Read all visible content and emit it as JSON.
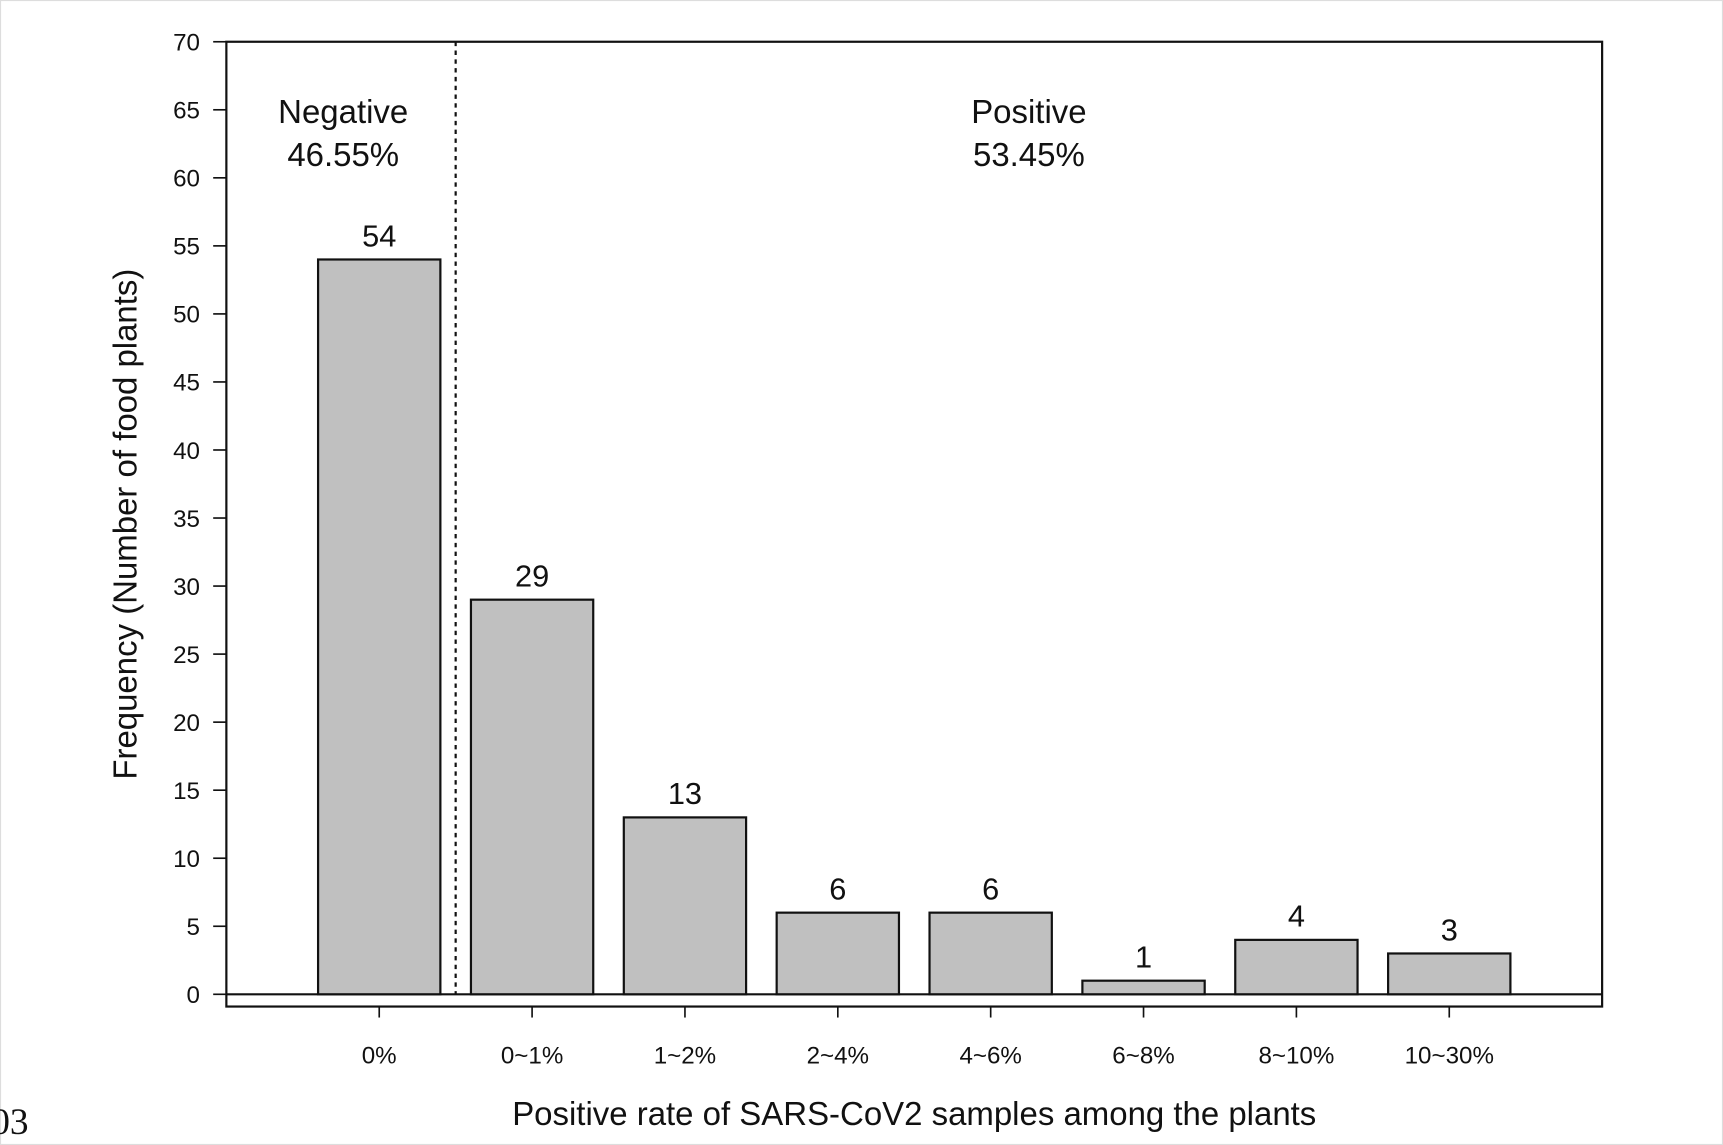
{
  "chart_data": {
    "type": "bar",
    "x_label": "Positive rate of SARS-CoV2 samples among the plants",
    "y_label": "Frequency (Number of food plants)",
    "categories": [
      "0%",
      "0~1%",
      "1~2%",
      "2~4%",
      "4~6%",
      "6~8%",
      "8~10%",
      "10~30%"
    ],
    "values": [
      54,
      29,
      13,
      6,
      6,
      1,
      4,
      3
    ],
    "color": "#c0c0c0",
    "ylim": [
      -0.9,
      70
    ],
    "yticks": [
      0,
      5,
      10,
      15,
      20,
      25,
      30,
      35,
      40,
      45,
      50,
      55,
      60,
      65,
      70
    ],
    "annotations": [
      {
        "lines": [
          "Negative",
          "46.55%"
        ]
      },
      {
        "lines": [
          "Positive",
          "53.45%"
        ]
      }
    ]
  },
  "fragment": "03"
}
